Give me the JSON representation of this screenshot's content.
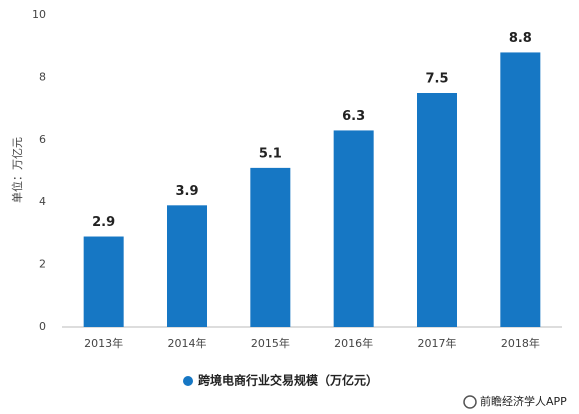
{
  "chart_data": {
    "type": "bar",
    "y_axis_label": "单位：万亿元",
    "categories": [
      "2013年",
      "2014年",
      "2015年",
      "2016年",
      "2017年",
      "2018年"
    ],
    "series": [
      {
        "name": "跨境电商行业交易规模（万亿元）",
        "color": "#1677c4",
        "values": [
          2.9,
          3.9,
          5.1,
          6.3,
          7.5,
          8.8
        ]
      }
    ],
    "ylim": [
      0,
      10
    ],
    "yticks": [
      0,
      2,
      4,
      6,
      8,
      10
    ],
    "grid": false,
    "legend": "bottom",
    "footer": "前瞻经济学人APP"
  }
}
